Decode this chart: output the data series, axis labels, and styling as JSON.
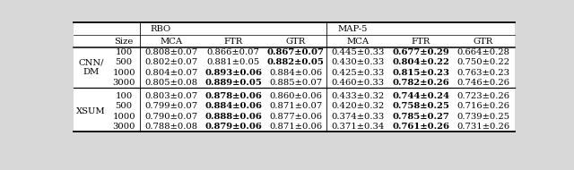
{
  "col_labels": [
    "",
    "Size",
    "MCA",
    "FTR",
    "GTR",
    "MCA",
    "FTR",
    "GTR"
  ],
  "group_labels": [
    "RBO",
    "MAP-5"
  ],
  "row_group1_label": "CNN/\nDM",
  "row_group2_label": "XSUM",
  "sizes": [
    "100",
    "500",
    "1000",
    "3000"
  ],
  "cnn_data": [
    [
      "0.808±0.07",
      "0.866±0.07",
      "0.867±0.07",
      "0.445±0.33",
      "0.677±0.29",
      "0.664±0.28"
    ],
    [
      "0.802±0.07",
      "0.881±0.05",
      "0.882±0.05",
      "0.430±0.33",
      "0.804±0.22",
      "0.750±0.22"
    ],
    [
      "0.804±0.07",
      "0.893±0.06",
      "0.884±0.06",
      "0.425±0.33",
      "0.815±0.23",
      "0.763±0.23"
    ],
    [
      "0.805±0.08",
      "0.889±0.05",
      "0.885±0.07",
      "0.460±0.33",
      "0.782±0.26",
      "0.746±0.26"
    ]
  ],
  "cnn_bold": [
    [
      false,
      false,
      true,
      false,
      true,
      false
    ],
    [
      false,
      false,
      true,
      false,
      true,
      false
    ],
    [
      false,
      true,
      false,
      false,
      true,
      false
    ],
    [
      false,
      true,
      false,
      false,
      true,
      false
    ]
  ],
  "xsum_data": [
    [
      "0.803±0.07",
      "0.878±0.06",
      "0.860±0.06",
      "0.433±0.32",
      "0.744±0.24",
      "0.723±0.26"
    ],
    [
      "0.799±0.07",
      "0.884±0.06",
      "0.871±0.07",
      "0.420±0.32",
      "0.758±0.25",
      "0.716±0.26"
    ],
    [
      "0.790±0.07",
      "0.888±0.06",
      "0.877±0.06",
      "0.374±0.33",
      "0.785±0.27",
      "0.739±0.25"
    ],
    [
      "0.788±0.08",
      "0.879±0.06",
      "0.871±0.06",
      "0.371±0.34",
      "0.761±0.26",
      "0.731±0.26"
    ]
  ],
  "xsum_bold": [
    [
      false,
      true,
      false,
      false,
      true,
      false
    ],
    [
      false,
      true,
      false,
      false,
      true,
      false
    ],
    [
      false,
      true,
      false,
      false,
      true,
      false
    ],
    [
      false,
      true,
      false,
      false,
      true,
      false
    ]
  ],
  "bg_color": "#d8d8d8",
  "font_size": 7.2
}
